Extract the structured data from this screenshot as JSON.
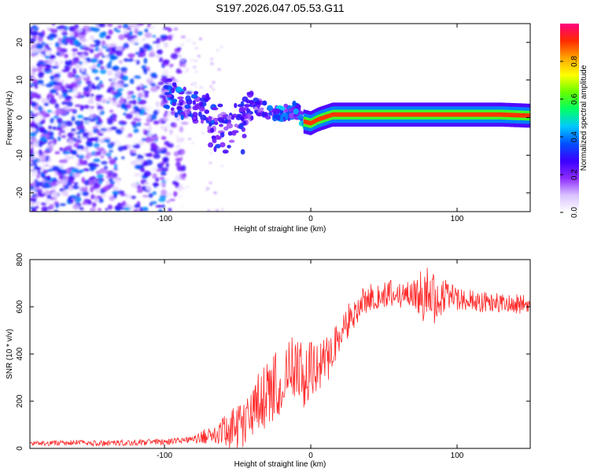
{
  "title": "S197.2026.047.05.53.G11",
  "chart_data": [
    {
      "type": "heatmap",
      "name": "spectrogram",
      "xlabel": "Height of straight line (km)",
      "ylabel": "Frequency (Hz)",
      "xlim": [
        -192,
        150
      ],
      "ylim": [
        -25,
        25
      ],
      "xticks": [
        -100,
        0,
        100
      ],
      "yticks": [
        -20,
        -10,
        0,
        10,
        20
      ],
      "colorbar": {
        "label": "Normalized spectral amplitude",
        "range": [
          0,
          1
        ],
        "ticks": [
          "0.0",
          "0.2",
          "0.4",
          "0.6",
          "0.8"
        ],
        "colormap": [
          "#ffffff",
          "#d9c2ff",
          "#8c2bff",
          "#3b00ff",
          "#0050ff",
          "#00c8ff",
          "#00ff66",
          "#66ff00",
          "#ffff00",
          "#ffa500",
          "#ff2a00",
          "#ff0080"
        ]
      },
      "ridge": [
        {
          "x": -100,
          "f": 7,
          "amp": 0.35
        },
        {
          "x": -90,
          "f": 4,
          "amp": 0.4
        },
        {
          "x": -80,
          "f": 3,
          "amp": 0.35
        },
        {
          "x": -70,
          "f": 2,
          "amp": 0.35
        },
        {
          "x": -60,
          "f": 1,
          "amp": 0.3
        },
        {
          "x": -50,
          "f": 2,
          "amp": 0.3
        },
        {
          "x": -40,
          "f": 3,
          "amp": 0.3
        },
        {
          "x": -30,
          "f": 2,
          "amp": 0.35
        },
        {
          "x": -20,
          "f": 1,
          "amp": 0.45
        },
        {
          "x": -10,
          "f": 2,
          "amp": 0.4
        },
        {
          "x": -5,
          "f": -1,
          "amp": 0.5
        },
        {
          "x": 0,
          "f": -1.5,
          "amp": 0.6
        },
        {
          "x": 5,
          "f": -0.5,
          "amp": 0.75
        },
        {
          "x": 15,
          "f": 0.8,
          "amp": 0.85
        },
        {
          "x": 60,
          "f": 0.8,
          "amp": 0.9
        },
        {
          "x": 100,
          "f": 0.8,
          "amp": 0.9
        },
        {
          "x": 130,
          "f": 0.8,
          "amp": 0.85
        },
        {
          "x": 150,
          "f": 0.5,
          "amp": 0.4
        }
      ]
    },
    {
      "type": "line",
      "name": "snr",
      "xlabel": "Height of straight line (km)",
      "ylabel": "SNR (10 * v/v)",
      "xlim": [
        -192,
        150
      ],
      "ylim": [
        0,
        800
      ],
      "xticks": [
        -100,
        0,
        100
      ],
      "yticks": [
        0,
        200,
        400,
        600,
        800
      ],
      "color": "#ff2a2a",
      "points": [
        [
          -192,
          20
        ],
        [
          -180,
          22
        ],
        [
          -160,
          25
        ],
        [
          -140,
          22
        ],
        [
          -120,
          25
        ],
        [
          -100,
          28
        ],
        [
          -90,
          32
        ],
        [
          -80,
          38
        ],
        [
          -70,
          55
        ],
        [
          -60,
          70
        ],
        [
          -50,
          90
        ],
        [
          -45,
          110
        ],
        [
          -40,
          150
        ],
        [
          -35,
          180
        ],
        [
          -30,
          220
        ],
        [
          -25,
          260
        ],
        [
          -20,
          300
        ],
        [
          -15,
          330
        ],
        [
          -10,
          360
        ],
        [
          -5,
          300
        ],
        [
          0,
          340
        ],
        [
          5,
          330
        ],
        [
          10,
          360
        ],
        [
          15,
          430
        ],
        [
          20,
          480
        ],
        [
          25,
          540
        ],
        [
          30,
          590
        ],
        [
          35,
          620
        ],
        [
          40,
          640
        ],
        [
          50,
          650
        ],
        [
          60,
          655
        ],
        [
          70,
          650
        ],
        [
          80,
          650
        ],
        [
          85,
          645
        ],
        [
          90,
          640
        ],
        [
          100,
          630
        ],
        [
          110,
          625
        ],
        [
          120,
          620
        ],
        [
          130,
          615
        ],
        [
          140,
          612
        ],
        [
          150,
          610
        ]
      ],
      "noise_amplitude": [
        [
          -192,
          10
        ],
        [
          -80,
          15
        ],
        [
          -60,
          60
        ],
        [
          -40,
          140
        ],
        [
          -20,
          160
        ],
        [
          0,
          120
        ],
        [
          20,
          90
        ],
        [
          40,
          60
        ],
        [
          70,
          60
        ],
        [
          80,
          140
        ],
        [
          90,
          90
        ],
        [
          100,
          50
        ],
        [
          150,
          40
        ]
      ]
    }
  ]
}
